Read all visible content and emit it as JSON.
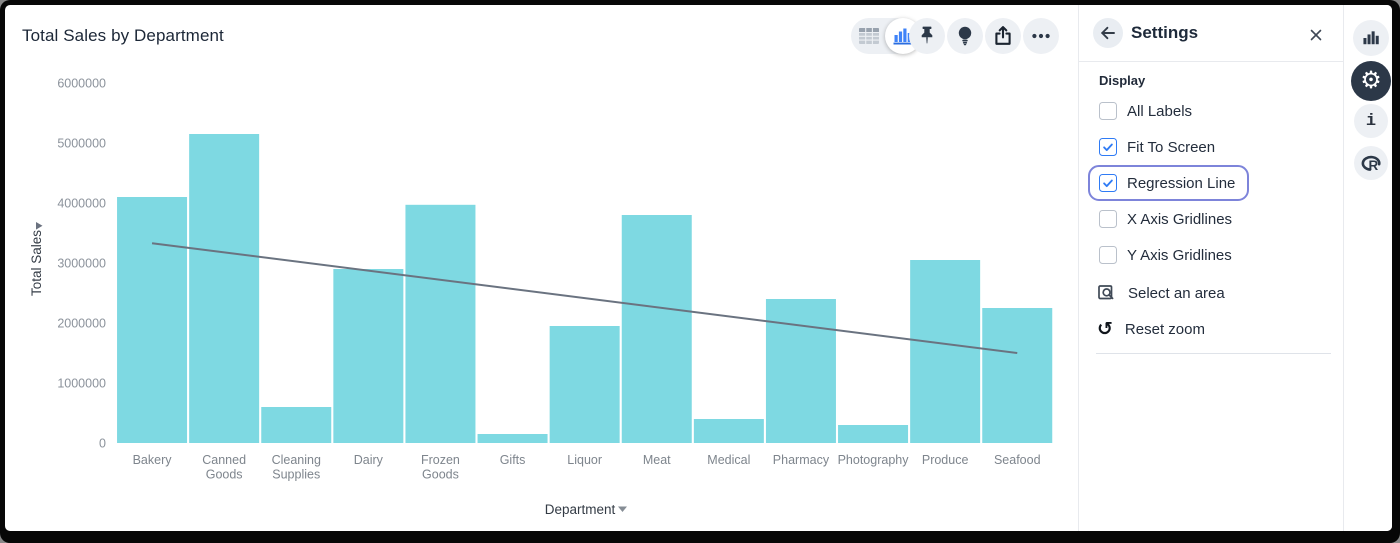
{
  "chart": {
    "title": "Total Sales by Department",
    "y_axis_title": "Total Sales",
    "x_axis_title": "Department"
  },
  "chart_data": {
    "type": "bar",
    "title": "Total Sales by Department",
    "xlabel": "Department",
    "ylabel": "Total Sales",
    "categories": [
      "Bakery",
      "Canned Goods",
      "Cleaning Supplies",
      "Dairy",
      "Frozen Goods",
      "Gifts",
      "Liquor",
      "Meat",
      "Medical",
      "Pharmacy",
      "Photography",
      "Produce",
      "Seafood"
    ],
    "values": [
      4100000,
      5150000,
      600000,
      2900000,
      3970000,
      150000,
      1950000,
      3800000,
      400000,
      2400000,
      300000,
      3050000,
      2250000
    ],
    "ylim": [
      0,
      6000000
    ],
    "yticks": [
      0,
      1000000,
      2000000,
      3000000,
      4000000,
      5000000,
      6000000
    ],
    "grid": "off",
    "legend": "none",
    "bar_color": "#7ed9e2",
    "regression_line": {
      "show": true,
      "start_value": 3330000,
      "end_value": 1500000,
      "color": "#6a7380"
    }
  },
  "toolbar": {
    "view_toggle": {
      "selected": "chart",
      "options": [
        "table",
        "chart"
      ]
    },
    "buttons": [
      {
        "name": "pin",
        "icon": "pushpin-icon"
      },
      {
        "name": "insights",
        "icon": "lightbulb-icon"
      },
      {
        "name": "export",
        "icon": "share-icon"
      },
      {
        "name": "more",
        "icon": "ellipsis-icon"
      }
    ]
  },
  "settings_panel": {
    "title": "Settings",
    "section_label": "Display",
    "checkboxes": [
      {
        "label": "All Labels",
        "checked": false,
        "focused": false
      },
      {
        "label": "Fit To Screen",
        "checked": true,
        "focused": false
      },
      {
        "label": "Regression Line",
        "checked": true,
        "focused": true
      },
      {
        "label": "X Axis Gridlines",
        "checked": false,
        "focused": false
      },
      {
        "label": "Y Axis Gridlines",
        "checked": false,
        "focused": false
      }
    ],
    "actions": [
      {
        "label": "Select an area",
        "icon": "select-area-icon"
      },
      {
        "label": "Reset zoom",
        "icon": "reset-zoom-icon"
      }
    ]
  },
  "right_rail": {
    "items": [
      {
        "name": "charts",
        "icon": "bar-chart-icon",
        "active": false
      },
      {
        "name": "settings",
        "icon": "gear-icon",
        "active": true
      },
      {
        "name": "info",
        "icon": "info-icon",
        "active": false
      },
      {
        "name": "r-console",
        "icon": "r-logo-icon",
        "active": false
      }
    ]
  },
  "colors": {
    "bar": "#7ed9e2",
    "regression": "#6a7380",
    "accent_blue": "#2f7bf5",
    "focus_ring": "#7d84da",
    "icon_dark": "#2c3848",
    "circle_bg": "#edf0f4"
  }
}
